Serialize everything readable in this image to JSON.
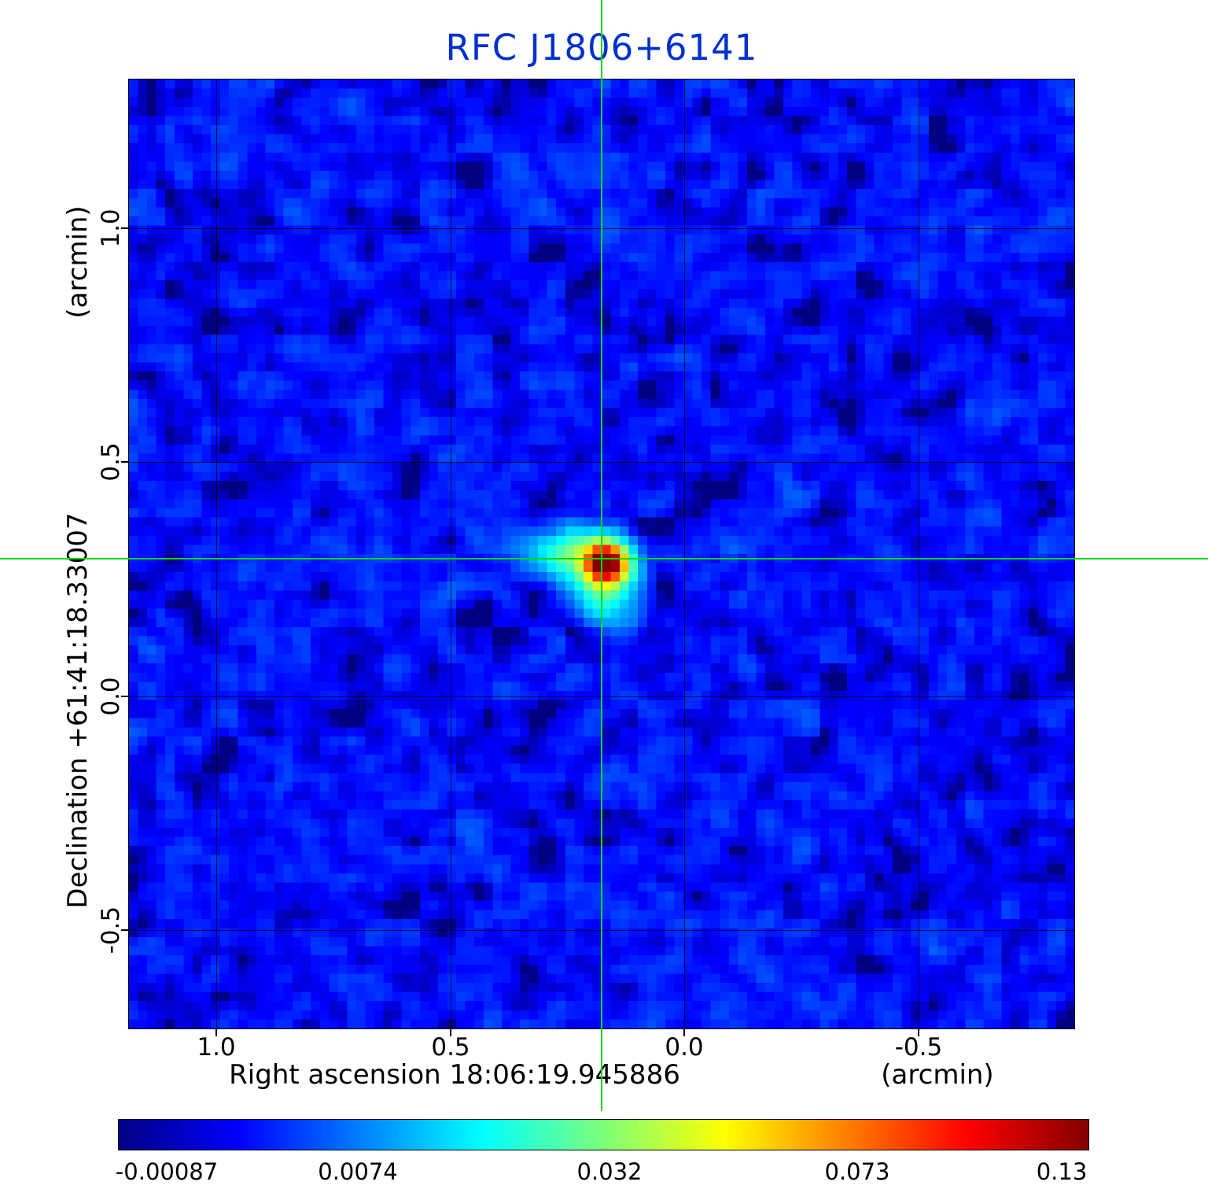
{
  "title": "RFC J1806+6141",
  "y_axis": {
    "unit": "(arcmin)",
    "label": "Declination  +61:41:18.33007",
    "ticks": [
      "1.0",
      "0.5",
      "0.0",
      "-0.5"
    ]
  },
  "x_axis": {
    "label": "Right ascension  18:06:19.945886",
    "unit": "(arcmin)",
    "ticks": [
      "1.0",
      "0.5",
      "0.0",
      "-0.5"
    ]
  },
  "colorbar": {
    "colormap": "jet",
    "tick_labels": [
      "-0.00087",
      "0.0074",
      "0.032",
      "0.073",
      "0.13"
    ]
  },
  "crosshair_color": "#00da00",
  "chart_data": {
    "type": "heatmap",
    "title": "RFC J1806+6141",
    "xlabel": "Right ascension 18:06:19.945886 (arcmin)",
    "ylabel": "Declination +61:41:18.33007 (arcmin)",
    "x_range": [
      1.19,
      -0.83
    ],
    "y_range": [
      -0.74,
      1.31
    ],
    "x_ticks": [
      1.0,
      0.5,
      0.0,
      -0.5
    ],
    "y_ticks": [
      1.0,
      0.5,
      0.0,
      -0.5
    ],
    "grid": true,
    "colormap": "jet",
    "scale": "squared-tick-spacing",
    "vmin": -0.00087,
    "vmax": 0.13,
    "colorbar_ticks": [
      -0.00087,
      0.0074,
      0.032,
      0.073,
      0.13
    ],
    "crosshair_arcmin": {
      "x": 0.18,
      "y": 0.27
    },
    "source": {
      "x_arcmin": 0.18,
      "y_arcmin": 0.27,
      "peak": 0.13,
      "components": [
        {
          "x_frac": 0.4995,
          "y_frac": 0.505,
          "peak": 0.135,
          "sx": 1.3,
          "sy": 1.2
        },
        {
          "x_frac": 0.496,
          "y_frac": 0.509,
          "peak": 0.03,
          "sx": 2.6,
          "sy": 2.4
        },
        {
          "x_frac": 0.458,
          "y_frac": 0.492,
          "peak": 0.022,
          "sx": 2.8,
          "sy": 1.5
        },
        {
          "x_frac": 0.496,
          "y_frac": 0.538,
          "peak": 0.014,
          "sx": 2.0,
          "sy": 2.2
        }
      ]
    },
    "background": {
      "mean": 0.0015,
      "noise_sigma": 0.0022
    }
  }
}
